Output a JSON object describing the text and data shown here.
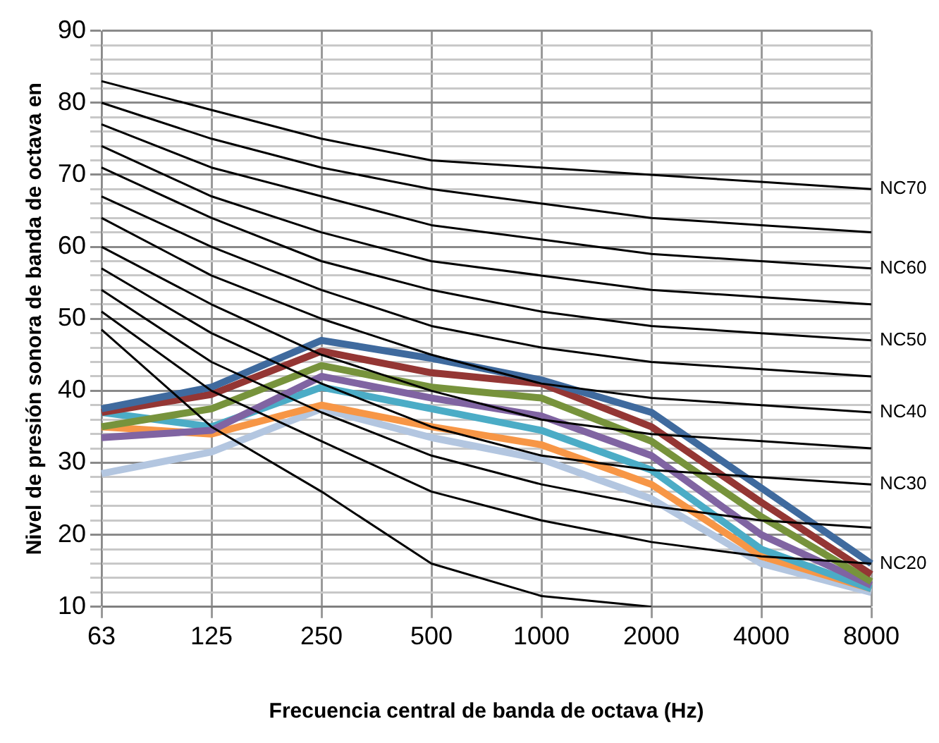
{
  "chart_data": {
    "type": "line",
    "xlabel": "Frecuencia central de banda de octava (Hz)",
    "ylabel": "Nivel de presión sonora de banda de octava en",
    "categories": [
      "63",
      "125",
      "250",
      "500",
      "1000",
      "2000",
      "4000",
      "8000"
    ],
    "ylim": [
      10,
      90
    ],
    "yticks": [
      10,
      {
        "value": 12,
        "label": null
      },
      {
        "value": 14,
        "label": null
      },
      {
        "value": 16,
        "label": null
      },
      {
        "value": 18,
        "label": null
      },
      20,
      {
        "value": 22,
        "label": null
      },
      {
        "value": 24,
        "label": null
      },
      {
        "value": 26,
        "label": null
      },
      {
        "value": 28,
        "label": null
      },
      30,
      {
        "value": 32,
        "label": null
      },
      {
        "value": 34,
        "label": null
      },
      {
        "value": 36,
        "label": null
      },
      {
        "value": 38,
        "label": null
      },
      40,
      {
        "value": 42,
        "label": null
      },
      {
        "value": 44,
        "label": null
      },
      {
        "value": 46,
        "label": null
      },
      {
        "value": 48,
        "label": null
      },
      50,
      {
        "value": 52,
        "label": null
      },
      {
        "value": 54,
        "label": null
      },
      {
        "value": 56,
        "label": null
      },
      {
        "value": 58,
        "label": null
      },
      60,
      {
        "value": 62,
        "label": null
      },
      {
        "value": 64,
        "label": null
      },
      {
        "value": 66,
        "label": null
      },
      {
        "value": 68,
        "label": null
      },
      70,
      {
        "value": 72,
        "label": null
      },
      {
        "value": 74,
        "label": null
      },
      {
        "value": 76,
        "label": null
      },
      {
        "value": 78,
        "label": null
      },
      80,
      {
        "value": 82,
        "label": null
      },
      {
        "value": 84,
        "label": null
      },
      {
        "value": 86,
        "label": null
      },
      {
        "value": 88,
        "label": null
      },
      90
    ],
    "grid": true,
    "legend": false,
    "marker": "none",
    "line_style": "solid",
    "series": [
      {
        "color": "#000000",
        "values": [
          83,
          79,
          75,
          72,
          71,
          70,
          69,
          68
        ]
      },
      {
        "color": "#000000",
        "values": [
          80,
          75,
          71,
          68,
          66,
          64,
          63,
          62
        ]
      },
      {
        "color": "#000000",
        "values": [
          77,
          71,
          67,
          63,
          61,
          59,
          58,
          57
        ]
      },
      {
        "color": "#000000",
        "values": [
          74,
          67,
          62,
          58,
          56,
          54,
          53,
          52
        ]
      },
      {
        "color": "#000000",
        "values": [
          71,
          64,
          58,
          54,
          51,
          49,
          48,
          47
        ]
      },
      {
        "color": "#000000",
        "values": [
          67,
          60,
          54,
          49,
          46,
          44,
          43,
          42
        ]
      },
      {
        "color": "#000000",
        "values": [
          64,
          56,
          50,
          45,
          41,
          39,
          38,
          37
        ]
      },
      {
        "color": "#000000",
        "values": [
          60,
          52,
          45,
          40,
          36,
          34,
          33,
          32
        ]
      },
      {
        "color": "#000000",
        "values": [
          57,
          48,
          41,
          35,
          31,
          29,
          28,
          27
        ]
      },
      {
        "color": "#000000",
        "values": [
          54,
          44,
          37,
          31,
          27,
          24,
          22,
          21
        ]
      },
      {
        "color": "#000000",
        "values": [
          51,
          40,
          33,
          26,
          22,
          19,
          17,
          16
        ]
      },
      {
        "color": "#000000",
        "values": [
          48.5,
          35,
          26,
          16,
          11.5,
          10,
          null,
          null
        ]
      },
      {
        "color": "#3f6a9e",
        "values": [
          37.5,
          40.5,
          47,
          44.5,
          41.5,
          37,
          26.5,
          16
        ]
      },
      {
        "color": "#943634",
        "values": [
          37,
          39.5,
          45.5,
          42.5,
          41,
          35,
          24.5,
          14.5
        ]
      },
      {
        "color": "#77933c",
        "values": [
          35,
          37.5,
          43.5,
          40.5,
          39,
          33,
          22.5,
          13.5
        ]
      },
      {
        "color": "#8064a2",
        "values": [
          33.5,
          34.5,
          42,
          39,
          36.5,
          31,
          20,
          13
        ]
      },
      {
        "color": "#4bacc6",
        "values": [
          37,
          35,
          40.5,
          37.5,
          34.5,
          29,
          18,
          12.5
        ]
      },
      {
        "color": "#f79646",
        "values": [
          35,
          34,
          38,
          35,
          32.5,
          27,
          17,
          12.5
        ]
      },
      {
        "color": "#b3c6e0",
        "values": [
          28.5,
          31.5,
          37.5,
          33.5,
          30.5,
          25,
          16,
          12
        ]
      }
    ],
    "annotations": [
      {
        "text": "NC70",
        "x": "8000",
        "y": 68
      },
      {
        "text": "NC60",
        "x": "8000",
        "y": 57
      },
      {
        "text": "NC50",
        "x": "8000",
        "y": 47
      },
      {
        "text": "NC40",
        "x": "8000",
        "y": 37
      },
      {
        "text": "NC30",
        "x": "8000",
        "y": 27
      },
      {
        "text": "NC20",
        "x": "8000",
        "y": 16
      }
    ]
  }
}
